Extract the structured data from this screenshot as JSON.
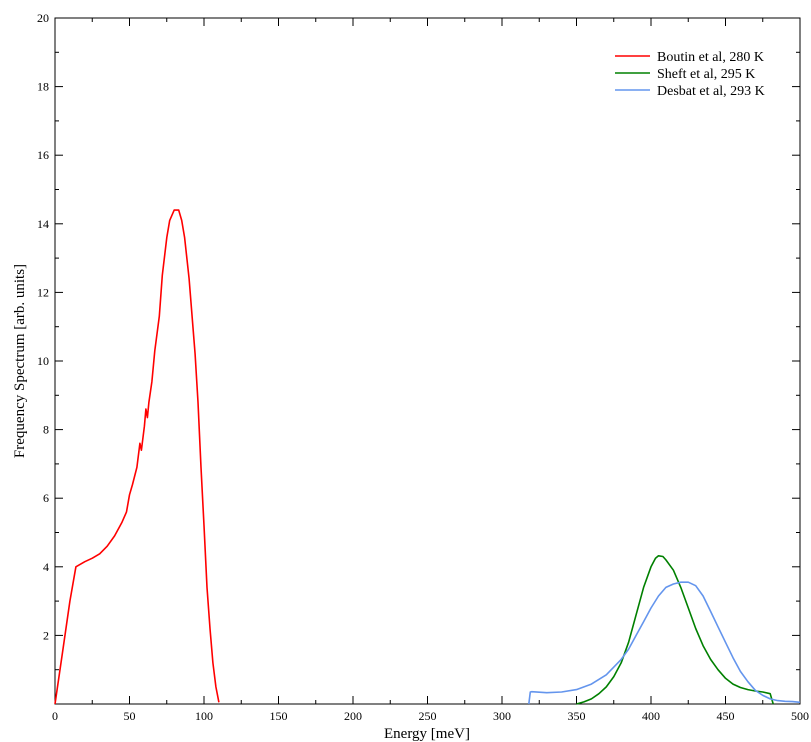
{
  "chart_data": {
    "type": "line",
    "title": "",
    "xlabel": "Energy [meV]",
    "ylabel": "Frequency Spectrum [arb. units]",
    "xlim": [
      0,
      500
    ],
    "ylim": [
      0,
      20
    ],
    "xticks": [
      0,
      50,
      100,
      150,
      200,
      250,
      300,
      350,
      400,
      450,
      500
    ],
    "yticks": [
      2,
      4,
      6,
      8,
      10,
      12,
      14,
      16,
      18,
      20
    ],
    "grid": false,
    "legend_position": "top-right",
    "series": [
      {
        "name": "Boutin et al, 280 K",
        "color": "#ff0000",
        "x": [
          0,
          5,
          10,
          14,
          20,
          25,
          30,
          35,
          40,
          45,
          48,
          50,
          52,
          55,
          57,
          58,
          60,
          61,
          62,
          63,
          65,
          67,
          70,
          72,
          75,
          77,
          80,
          83,
          85,
          87,
          90,
          92,
          94,
          96,
          98,
          100,
          102,
          104,
          106,
          108,
          110
        ],
        "y": [
          0,
          1.5,
          3.0,
          4.0,
          4.15,
          4.25,
          4.38,
          4.6,
          4.9,
          5.3,
          5.6,
          6.1,
          6.4,
          6.9,
          7.6,
          7.4,
          8.1,
          8.6,
          8.35,
          8.8,
          9.4,
          10.3,
          11.3,
          12.5,
          13.6,
          14.1,
          14.4,
          14.4,
          14.1,
          13.6,
          12.4,
          11.3,
          10.2,
          8.8,
          6.9,
          5.2,
          3.4,
          2.2,
          1.2,
          0.5,
          0.05
        ]
      },
      {
        "name": "Sheft et al, 295 K",
        "color": "#008000",
        "x": [
          350,
          355,
          360,
          365,
          370,
          375,
          380,
          385,
          390,
          395,
          400,
          403,
          405,
          408,
          410,
          415,
          420,
          425,
          430,
          435,
          440,
          445,
          450,
          455,
          460,
          465,
          470,
          475,
          480,
          481,
          482
        ],
        "y": [
          0,
          0.06,
          0.15,
          0.3,
          0.5,
          0.8,
          1.2,
          1.8,
          2.6,
          3.4,
          4.0,
          4.25,
          4.32,
          4.3,
          4.2,
          3.9,
          3.4,
          2.8,
          2.2,
          1.7,
          1.3,
          1.0,
          0.75,
          0.58,
          0.48,
          0.42,
          0.38,
          0.35,
          0.3,
          0.15,
          0
        ]
      },
      {
        "name": "Desbat et al, 293 K",
        "color": "#6495ed",
        "x": [
          318,
          319,
          320,
          330,
          340,
          350,
          360,
          370,
          380,
          385,
          390,
          395,
          400,
          405,
          410,
          415,
          420,
          425,
          430,
          435,
          440,
          445,
          450,
          455,
          460,
          465,
          470,
          475,
          480,
          485,
          490,
          495,
          500
        ],
        "y": [
          0,
          0.35,
          0.36,
          0.33,
          0.35,
          0.42,
          0.58,
          0.85,
          1.3,
          1.6,
          2.0,
          2.4,
          2.8,
          3.15,
          3.4,
          3.5,
          3.55,
          3.55,
          3.45,
          3.15,
          2.7,
          2.25,
          1.8,
          1.35,
          0.95,
          0.65,
          0.4,
          0.25,
          0.15,
          0.1,
          0.08,
          0.07,
          0.05
        ]
      }
    ]
  }
}
